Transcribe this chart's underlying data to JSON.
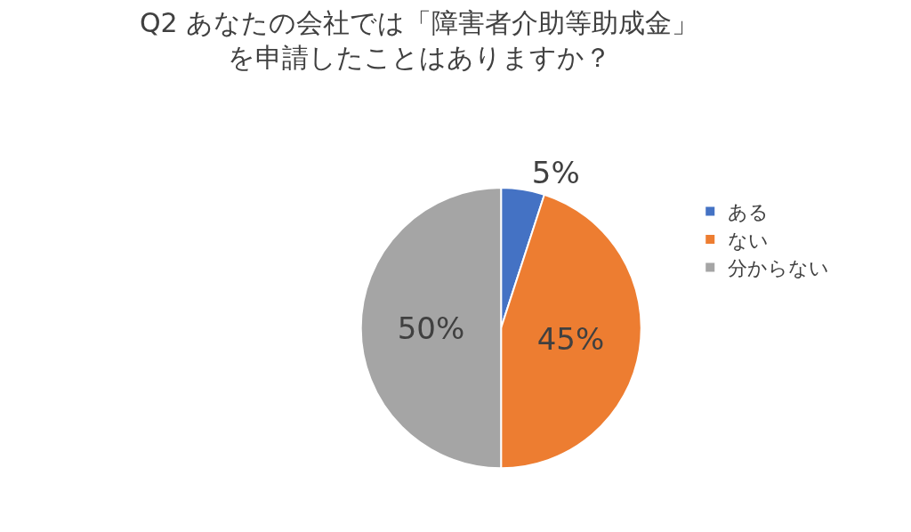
{
  "chart_data": {
    "type": "pie",
    "title": "Q2 あなたの会社では「障害者介助等助成金」を申請したことはありますか？",
    "categories": [
      "ある",
      "ない",
      "分からない"
    ],
    "values": [
      5,
      45,
      50
    ],
    "colors": [
      "#4472c4",
      "#ed7d31",
      "#a5a5a5"
    ],
    "value_labels": [
      "5%",
      "45%",
      "50%"
    ],
    "legend": "right"
  }
}
